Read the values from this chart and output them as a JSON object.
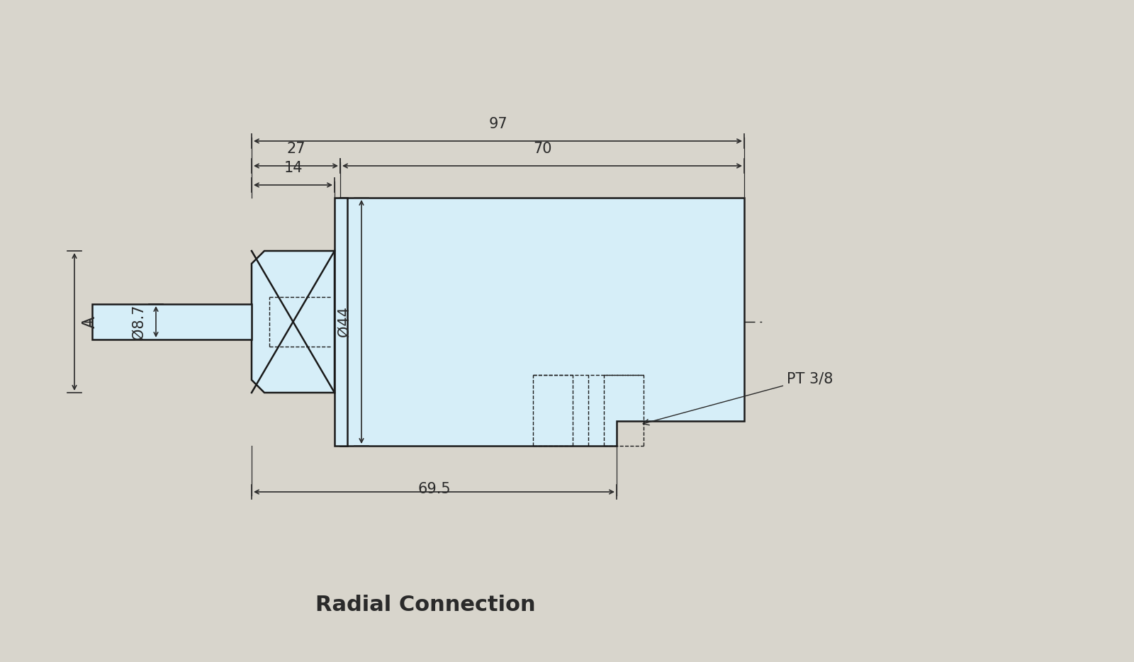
{
  "bg_color": "#d8d5cc",
  "part_fill": "#d6eef8",
  "part_edge": "#1a1a1a",
  "dim_color": "#2a2a2a",
  "title": "Radial Connection",
  "title_fontsize": 22,
  "dim_fontsize": 15,
  "annotation_phi87": "Ø8.7",
  "annotation_A": "A",
  "annotation_phi44": "Ø44",
  "annotation_PT38": "PT 3/8",
  "dim_97_label": "97",
  "dim_27_label": "27",
  "dim_70_label": "70",
  "dim_14_label": "14",
  "dim_695_label": "69.5"
}
